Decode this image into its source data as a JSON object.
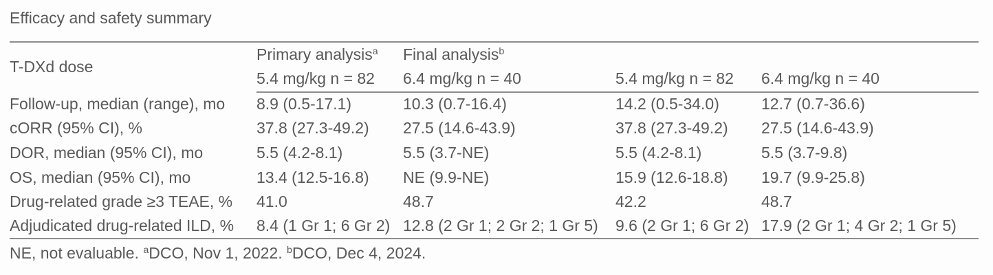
{
  "title": "Efficacy and safety summary",
  "table": {
    "row_header": "T-DXd dose",
    "group_headers": [
      {
        "label": "Primary analysis",
        "sup": "a"
      },
      {
        "label": "Final analysis",
        "sup": "b"
      }
    ],
    "col_headers": [
      "5.4 mg/kg n = 82",
      "6.4 mg/kg n = 40",
      "5.4 mg/kg n = 82",
      "6.4 mg/kg n = 40"
    ],
    "rows": [
      {
        "label": "Follow-up, median (range), mo",
        "values": [
          "8.9 (0.5-17.1)",
          "10.3 (0.7-16.4)",
          "14.2 (0.5-34.0)",
          "12.7 (0.7-36.6)"
        ]
      },
      {
        "label": "cORR (95% CI), %",
        "values": [
          "37.8 (27.3-49.2)",
          "27.5 (14.6-43.9)",
          "37.8 (27.3-49.2)",
          "27.5 (14.6-43.9)"
        ]
      },
      {
        "label": "DOR, median (95% CI), mo",
        "values": [
          "5.5 (4.2-8.1)",
          "5.5 (3.7-NE)",
          "5.5 (4.2-8.1)",
          "5.5 (3.7-9.8)"
        ]
      },
      {
        "label": "OS, median (95% CI), mo",
        "values": [
          "13.4 (12.5-16.8)",
          "NE (9.9-NE)",
          "15.9 (12.6-18.8)",
          "19.7 (9.9-25.8)"
        ]
      },
      {
        "label": "Drug-related grade ≥3 TEAE, %",
        "values": [
          "41.0",
          "48.7",
          "42.2",
          "48.7"
        ]
      },
      {
        "label": "Adjudicated drug-related ILD, %",
        "values": [
          "8.4 (1 Gr 1; 6 Gr 2)",
          "12.8 (2 Gr 1; 2 Gr 2; 1 Gr 5)",
          "9.6 (2 Gr 1; 6 Gr 2)",
          "17.9 (2 Gr 1; 4 Gr 2; 1 Gr 5)"
        ]
      }
    ]
  },
  "footnote": {
    "segments": [
      {
        "text": "NE, not evaluable. "
      },
      {
        "sup": "a"
      },
      {
        "text": "DCO, Nov 1, 2022. "
      },
      {
        "sup": "b"
      },
      {
        "text": "DCO, Dec 4, 2024."
      }
    ]
  },
  "colors": {
    "text": "#595959",
    "rule": "#8d8d8d",
    "background": "#fdfdfd"
  }
}
